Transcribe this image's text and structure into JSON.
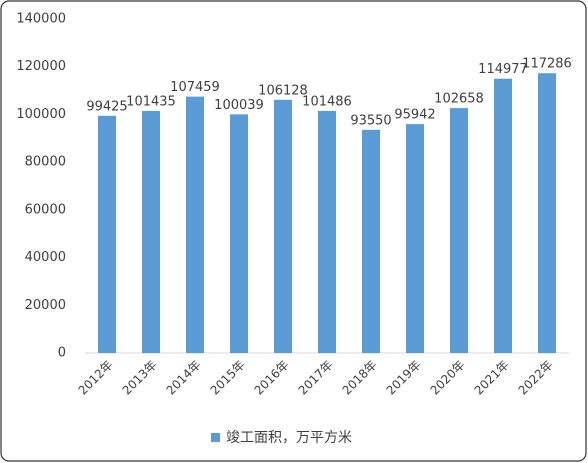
{
  "chart_data": {
    "type": "bar",
    "categories": [
      "2012年",
      "2013年",
      "2014年",
      "2015年",
      "2016年",
      "2017年",
      "2018年",
      "2019年",
      "2020年",
      "2021年",
      "2022年"
    ],
    "series": [
      {
        "name": "竣工面积，万平方米",
        "color": "#5b9bd5",
        "values": [
          99425,
          101435,
          107459,
          100039,
          106128,
          101486,
          93550,
          95942,
          102658,
          114977,
          117286
        ]
      }
    ],
    "ylim": [
      0,
      140000
    ],
    "yticks": [
      0,
      20000,
      40000,
      60000,
      80000,
      100000,
      120000,
      140000
    ],
    "grid": false,
    "legend": "bottom"
  }
}
